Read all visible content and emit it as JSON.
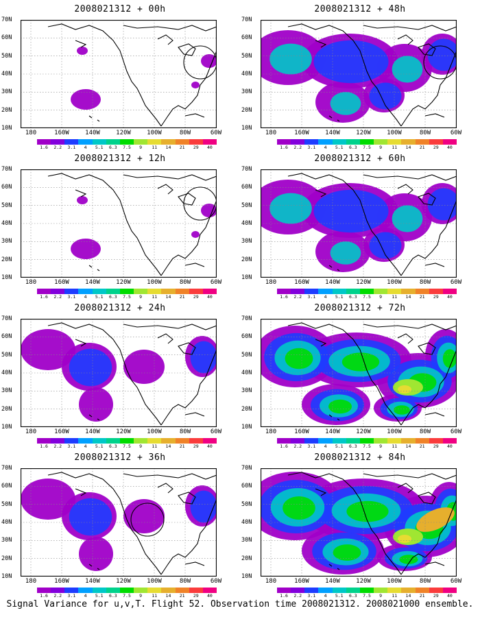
{
  "panels": [
    {
      "title": "2008021312 + 00h",
      "circle": [
        4
      ],
      "intensity": 1
    },
    {
      "title": "2008021312 + 48h",
      "circle": [
        4
      ],
      "intensity": 3
    },
    {
      "title": "2008021312 + 12h",
      "circle": [
        4
      ],
      "intensity": 1
    },
    {
      "title": "2008021312 + 60h",
      "circle": [],
      "intensity": 3
    },
    {
      "title": "2008021312 + 24h",
      "circle": [],
      "intensity": 2
    },
    {
      "title": "2008021312 + 72h",
      "circle": [],
      "intensity": 4
    },
    {
      "title": "2008021312 + 36h",
      "circle": [
        2
      ],
      "intensity": 2
    },
    {
      "title": "2008021312 + 84h",
      "circle": [],
      "intensity": 5
    }
  ],
  "lat_labels": [
    "70N",
    "60N",
    "50N",
    "40N",
    "30N",
    "20N",
    "10N"
  ],
  "lon_labels": [
    "180",
    "160W",
    "140W",
    "120W",
    "100W",
    "80W",
    "60W"
  ],
  "colorbar": {
    "colors": [
      "#a000c8",
      "#8200dc",
      "#1e3cff",
      "#00a0ff",
      "#00c8c8",
      "#00d28c",
      "#00dc00",
      "#a0e632",
      "#e6dc32",
      "#e6af2d",
      "#f08228",
      "#fa3c3c",
      "#f00082"
    ],
    "labels": [
      "1.6",
      "2.2",
      "3.1",
      "4",
      "5.1",
      "6.3",
      "7.5",
      "9",
      "11",
      "14",
      "21",
      "29",
      "40"
    ]
  },
  "caption": "Signal Variance for u,v,T. Flight 52. Observation time 2008021312. 2008021000 ensemble."
}
